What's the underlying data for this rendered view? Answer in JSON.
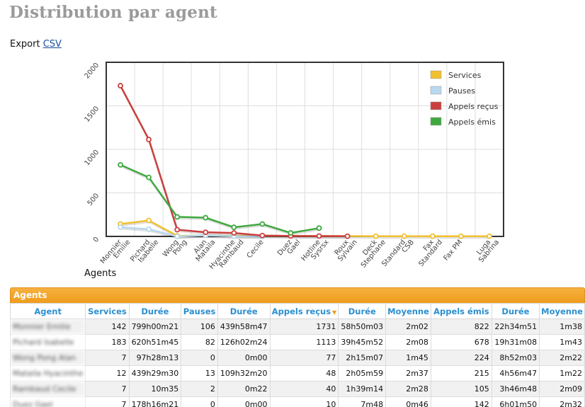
{
  "page": {
    "title": "Distribution par agent"
  },
  "export": {
    "label": "Export",
    "link": "CSV"
  },
  "chart_data": {
    "type": "line",
    "xlabel": "Agents",
    "ylabel": "",
    "ylim": [
      0,
      2000
    ],
    "yticks": [
      0,
      500,
      1000,
      1500,
      2000
    ],
    "grid": true,
    "legend_position": "top-right",
    "categories": [
      [
        "Monnier",
        "Emilie"
      ],
      [
        "Pichard",
        "Isabelle"
      ],
      [
        "Wong",
        "Pong"
      ],
      [
        "Alan",
        "Mataila"
      ],
      [
        "Hyacinthe",
        "Rambaud"
      ],
      [
        "Cecile"
      ],
      [
        "Duez",
        "Gael"
      ],
      [
        "Hotline",
        "Sysrsx"
      ],
      [
        "Roux",
        "Sylvain"
      ],
      [
        "Deck",
        "Stephane"
      ],
      [
        "Standard",
        "CSB"
      ],
      [
        "Fax",
        "Standard"
      ],
      [
        "Fax PM"
      ],
      [
        "Luga",
        "Sabrina"
      ]
    ],
    "series": [
      {
        "name": "Services",
        "color": "#f0c030",
        "values": [
          142,
          183,
          7,
          12,
          7,
          7,
          null,
          null,
          null,
          2,
          2,
          2,
          2,
          2
        ]
      },
      {
        "name": "Pauses",
        "color": "#b8d8ee",
        "values": [
          106,
          82,
          0,
          13,
          2,
          0,
          null,
          null,
          null,
          null,
          null,
          null,
          null,
          null
        ]
      },
      {
        "name": "Appels reçus",
        "color": "#c9403e",
        "values": [
          1731,
          1113,
          77,
          48,
          40,
          10,
          5,
          4,
          2,
          null,
          null,
          null,
          null,
          null
        ]
      },
      {
        "name": "Appels émis",
        "color": "#3fa93f",
        "values": [
          822,
          678,
          224,
          215,
          105,
          142,
          40,
          95,
          null,
          null,
          null,
          null,
          null,
          null
        ]
      }
    ]
  },
  "table": {
    "title": "Agents",
    "columns": [
      "Agent",
      "Services",
      "Durée",
      "Pauses",
      "Durée",
      "Appels reçus",
      "Durée",
      "Moyenne",
      "Appels émis",
      "Durée",
      "Moyenne"
    ],
    "rows": [
      [
        "Monnier Emilie",
        "142",
        "799h00m21",
        "106",
        "439h58m47",
        "1731",
        "58h50m03",
        "2m02",
        "822",
        "22h34m51",
        "1m38"
      ],
      [
        "Pichard Isabelle",
        "183",
        "620h51m45",
        "82",
        "126h02m24",
        "1113",
        "39h45m52",
        "2m08",
        "678",
        "19h31m08",
        "1m43"
      ],
      [
        "Wong Pong Alan",
        "7",
        "97h28m13",
        "0",
        "0m00",
        "77",
        "2h15m07",
        "1m45",
        "224",
        "8h52m03",
        "2m22"
      ],
      [
        "Mataila Hyacinthe",
        "12",
        "439h29m30",
        "13",
        "109h32m20",
        "48",
        "2h05m59",
        "2m37",
        "215",
        "4h56m47",
        "1m22"
      ],
      [
        "Rambaud Cecile",
        "7",
        "10m35",
        "2",
        "0m22",
        "40",
        "1h39m14",
        "2m28",
        "105",
        "3h46m48",
        "2m09"
      ],
      [
        "Duez Gael",
        "7",
        "178h16m21",
        "0",
        "0m00",
        "10",
        "7m48",
        "0m46",
        "142",
        "6h01m50",
        "2m32"
      ]
    ]
  }
}
